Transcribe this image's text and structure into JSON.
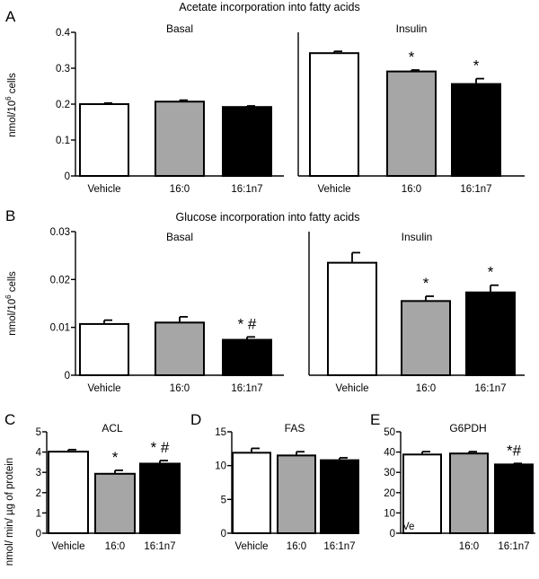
{
  "chart_data": [
    {
      "type": "bar",
      "panel_letter": "A",
      "title": "Acetate incorporation into fatty acids",
      "subtitle": "Basal",
      "ylabel": "nmol/10^6 cells",
      "ylim": [
        0,
        0.4
      ],
      "yticks": [
        "0",
        "0.1",
        "0.2",
        "0.3",
        "0.4"
      ],
      "categories": [
        "Vehicle",
        "16:0",
        "16:1n7"
      ],
      "values": [
        0.2,
        0.207,
        0.192
      ],
      "errors": [
        0.003,
        0.004,
        0.003
      ],
      "colors": [
        "#ffffff",
        "#a6a6a6",
        "#000000"
      ],
      "annotations": [
        "",
        "",
        ""
      ]
    },
    {
      "type": "bar",
      "subtitle": "Insulin",
      "ylim": [
        0,
        0.4
      ],
      "categories": [
        "Vehicle",
        "16:0",
        "16:1n7"
      ],
      "values": [
        0.342,
        0.291,
        0.256
      ],
      "errors": [
        0.005,
        0.004,
        0.015
      ],
      "colors": [
        "#ffffff",
        "#a6a6a6",
        "#000000"
      ],
      "annotations": [
        "",
        "*",
        "*"
      ]
    },
    {
      "type": "bar",
      "panel_letter": "B",
      "title": "Glucose incorporation into fatty acids",
      "subtitle": "Basal",
      "ylabel": "nmol/10^6 cells",
      "ylim": [
        0,
        0.03
      ],
      "yticks": [
        "0",
        "0.01",
        "0.02",
        "0.03"
      ],
      "categories": [
        "Vehicle",
        "16:0",
        "16:1n7"
      ],
      "values": [
        0.0107,
        0.011,
        0.0074
      ],
      "errors": [
        0.0008,
        0.0012,
        0.0006
      ],
      "colors": [
        "#ffffff",
        "#a6a6a6",
        "#000000"
      ],
      "annotations": [
        "",
        "",
        "* #"
      ]
    },
    {
      "type": "bar",
      "subtitle": "Insulin",
      "ylim": [
        0,
        0.03
      ],
      "categories": [
        "Vehicle",
        "16:0",
        "16:1n7"
      ],
      "values": [
        0.0235,
        0.0155,
        0.0173
      ],
      "errors": [
        0.0021,
        0.001,
        0.0015
      ],
      "colors": [
        "#ffffff",
        "#a6a6a6",
        "#000000"
      ],
      "annotations": [
        "",
        "*",
        "*"
      ]
    },
    {
      "type": "bar",
      "panel_letter": "C",
      "subtitle": "ACL",
      "ylabel": "nmol/ min/ µg of protein",
      "ylim": [
        0,
        5
      ],
      "yticks": [
        "0",
        "1",
        "2",
        "3",
        "4",
        "5"
      ],
      "categories": [
        "Vehicle",
        "16:0",
        "16:1n7"
      ],
      "values": [
        4.02,
        2.93,
        3.43
      ],
      "errors": [
        0.1,
        0.17,
        0.15
      ],
      "colors": [
        "#ffffff",
        "#a6a6a6",
        "#000000"
      ],
      "annotations": [
        "",
        "*",
        "* #"
      ]
    },
    {
      "type": "bar",
      "panel_letter": "D",
      "subtitle": "FAS",
      "ylim": [
        0,
        15
      ],
      "yticks": [
        "0",
        "5",
        "10",
        "15"
      ],
      "categories": [
        "Vehicle",
        "16:0",
        "16:1n7"
      ],
      "values": [
        11.9,
        11.5,
        10.8
      ],
      "errors": [
        0.65,
        0.55,
        0.35
      ],
      "colors": [
        "#ffffff",
        "#a6a6a6",
        "#000000"
      ],
      "annotations": [
        "",
        "",
        ""
      ]
    },
    {
      "type": "bar",
      "panel_letter": "E",
      "subtitle": "G6PDH",
      "ylim": [
        0,
        50
      ],
      "yticks": [
        "0",
        "10",
        "20",
        "30",
        "40",
        "50"
      ],
      "categories": [
        "Ve",
        "16:0",
        "16:1n7"
      ],
      "values": [
        38.8,
        39.3,
        33.9
      ],
      "errors": [
        1.4,
        0.9,
        0.5
      ],
      "colors": [
        "#ffffff",
        "#a6a6a6",
        "#000000"
      ],
      "annotations": [
        "",
        "",
        "*#"
      ]
    }
  ]
}
